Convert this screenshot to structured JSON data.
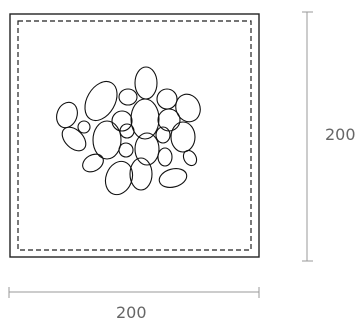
{
  "dimensions": {
    "width_label": "200",
    "height_label": "200"
  }
}
